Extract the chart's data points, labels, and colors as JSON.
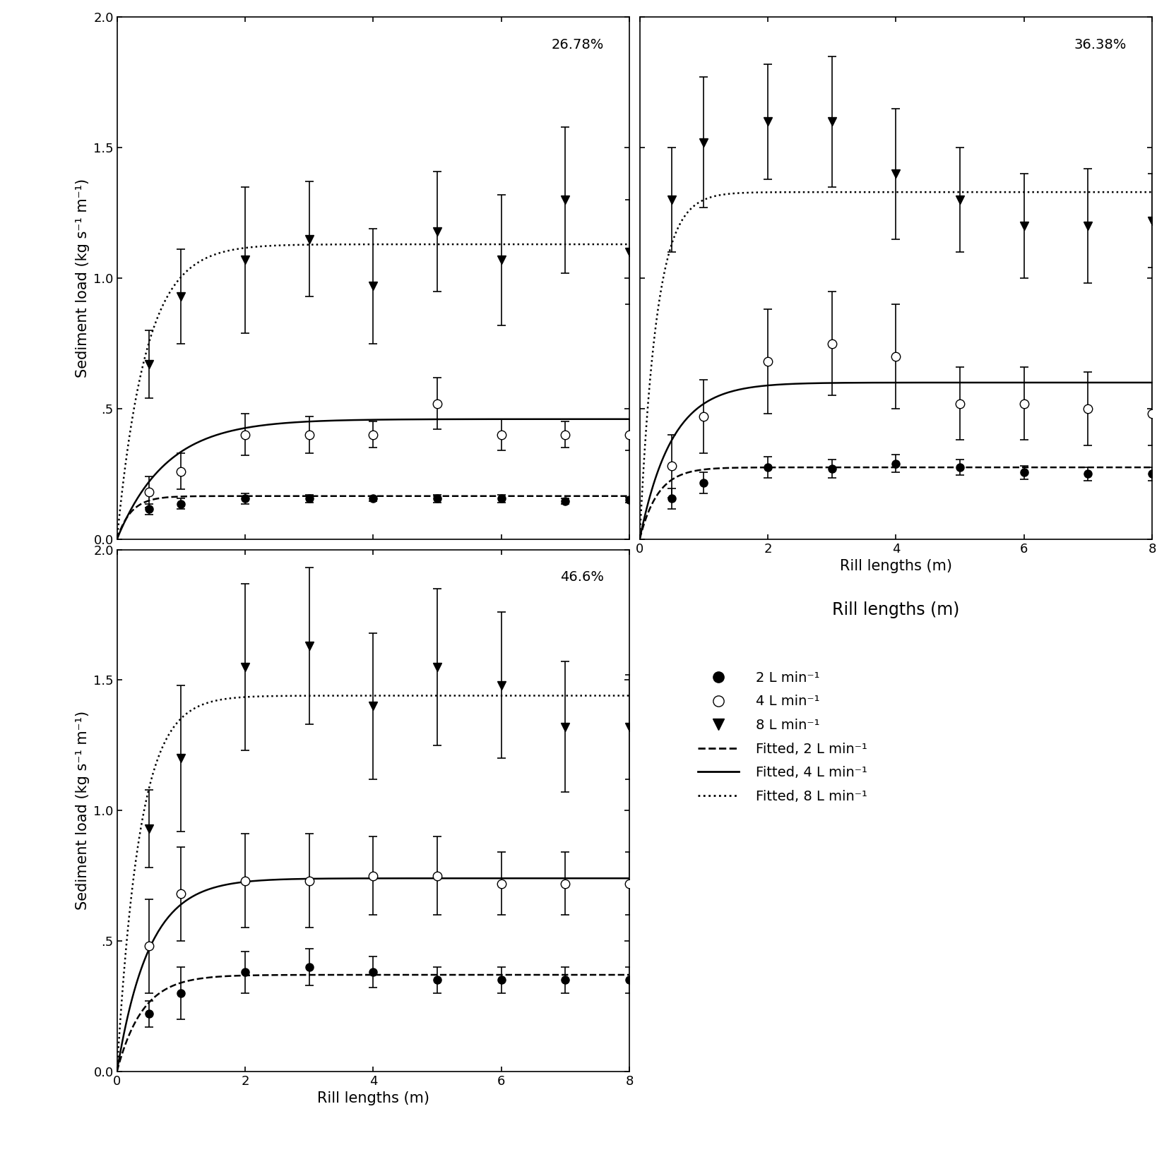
{
  "panels": [
    {
      "label": "26.78%",
      "flow2_data_x": [
        0.5,
        1.0,
        2.0,
        3.0,
        4.0,
        5.0,
        6.0,
        7.0,
        8.0
      ],
      "flow2_data_y": [
        0.115,
        0.135,
        0.155,
        0.155,
        0.155,
        0.155,
        0.155,
        0.145,
        0.15
      ],
      "flow2_yerr": [
        0.02,
        0.02,
        0.02,
        0.015,
        0.01,
        0.015,
        0.015,
        0.01,
        0.01
      ],
      "flow4_data_x": [
        0.5,
        1.0,
        2.0,
        3.0,
        4.0,
        5.0,
        6.0,
        7.0,
        8.0
      ],
      "flow4_data_y": [
        0.18,
        0.26,
        0.4,
        0.4,
        0.4,
        0.52,
        0.4,
        0.4,
        0.4
      ],
      "flow4_yerr": [
        0.06,
        0.07,
        0.08,
        0.07,
        0.05,
        0.1,
        0.06,
        0.05,
        0.06
      ],
      "flow8_data_x": [
        0.5,
        1.0,
        2.0,
        3.0,
        4.0,
        5.0,
        6.0,
        7.0,
        8.0
      ],
      "flow8_data_y": [
        0.67,
        0.93,
        1.07,
        1.15,
        0.97,
        1.18,
        1.07,
        1.3,
        1.1
      ],
      "flow8_yerr": [
        0.13,
        0.18,
        0.28,
        0.22,
        0.22,
        0.23,
        0.25,
        0.28,
        0.2
      ],
      "fit2_params": [
        0.165,
        4.5
      ],
      "fit4_params": [
        0.46,
        1.3
      ],
      "fit8_params": [
        1.13,
        2.2
      ],
      "ylim": [
        0.0,
        2.0
      ],
      "yticks": [
        0.0,
        0.5,
        1.0,
        1.5,
        2.0
      ],
      "show_ylabel": true,
      "show_yticklabels": true,
      "show_xlabel": false,
      "show_xticklabels": false
    },
    {
      "label": "36.38%",
      "flow2_data_x": [
        0.5,
        1.0,
        2.0,
        3.0,
        4.0,
        5.0,
        6.0,
        7.0,
        8.0
      ],
      "flow2_data_y": [
        0.155,
        0.215,
        0.275,
        0.27,
        0.29,
        0.275,
        0.255,
        0.25,
        0.25
      ],
      "flow2_yerr": [
        0.04,
        0.04,
        0.04,
        0.035,
        0.035,
        0.03,
        0.025,
        0.025,
        0.025
      ],
      "flow4_data_x": [
        0.5,
        1.0,
        2.0,
        3.0,
        4.0,
        5.0,
        6.0,
        7.0,
        8.0
      ],
      "flow4_data_y": [
        0.28,
        0.47,
        0.68,
        0.75,
        0.7,
        0.52,
        0.52,
        0.5,
        0.48
      ],
      "flow4_yerr": [
        0.12,
        0.14,
        0.2,
        0.2,
        0.2,
        0.14,
        0.14,
        0.14,
        0.12
      ],
      "flow8_data_x": [
        0.5,
        1.0,
        2.0,
        3.0,
        4.0,
        5.0,
        6.0,
        7.0,
        8.0
      ],
      "flow8_data_y": [
        1.3,
        1.52,
        1.6,
        1.6,
        1.4,
        1.3,
        1.2,
        1.2,
        1.22
      ],
      "flow8_yerr": [
        0.2,
        0.25,
        0.22,
        0.25,
        0.25,
        0.2,
        0.2,
        0.22,
        0.18
      ],
      "fit2_params": [
        0.275,
        3.5
      ],
      "fit4_params": [
        0.6,
        2.0
      ],
      "fit8_params": [
        1.33,
        3.8
      ],
      "ylim": [
        0.0,
        2.0
      ],
      "yticks": [
        0.0,
        0.5,
        1.0,
        1.5,
        2.0
      ],
      "show_ylabel": false,
      "show_yticklabels": false,
      "show_xlabel": true,
      "show_xticklabels": true
    },
    {
      "label": "46.6%",
      "flow2_data_x": [
        0.5,
        1.0,
        2.0,
        3.0,
        4.0,
        5.0,
        6.0,
        7.0,
        8.0
      ],
      "flow2_data_y": [
        0.22,
        0.3,
        0.38,
        0.4,
        0.38,
        0.35,
        0.35,
        0.35,
        0.35
      ],
      "flow2_yerr": [
        0.05,
        0.1,
        0.08,
        0.07,
        0.06,
        0.05,
        0.05,
        0.05,
        0.05
      ],
      "flow4_data_x": [
        0.5,
        1.0,
        2.0,
        3.0,
        4.0,
        5.0,
        6.0,
        7.0,
        8.0
      ],
      "flow4_data_y": [
        0.48,
        0.68,
        0.73,
        0.73,
        0.75,
        0.75,
        0.72,
        0.72,
        0.72
      ],
      "flow4_yerr": [
        0.18,
        0.18,
        0.18,
        0.18,
        0.15,
        0.15,
        0.12,
        0.12,
        0.12
      ],
      "flow8_data_x": [
        0.5,
        1.0,
        2.0,
        3.0,
        4.0,
        5.0,
        6.0,
        7.0,
        8.0
      ],
      "flow8_data_y": [
        0.93,
        1.2,
        1.55,
        1.63,
        1.4,
        1.55,
        1.48,
        1.32,
        1.32
      ],
      "flow8_yerr": [
        0.15,
        0.28,
        0.32,
        0.3,
        0.28,
        0.3,
        0.28,
        0.25,
        0.2
      ],
      "fit2_params": [
        0.37,
        2.5
      ],
      "fit4_params": [
        0.74,
        2.0
      ],
      "fit8_params": [
        1.44,
        2.8
      ],
      "ylim": [
        0.0,
        2.0
      ],
      "yticks": [
        0.0,
        0.5,
        1.0,
        1.5,
        2.0
      ],
      "show_ylabel": true,
      "show_yticklabels": true,
      "show_xlabel": true,
      "show_xticklabels": true
    }
  ],
  "xlabel": "Rill lengths (m)",
  "ylabel": "Sediment load (kg s⁻¹ m⁻¹)",
  "xlim": [
    0,
    8
  ],
  "xticks": [
    0,
    2,
    4,
    6,
    8
  ],
  "legend_marker_labels": [
    "2 L min⁻¹",
    "4 L min⁻¹",
    "8 L min⁻¹"
  ],
  "legend_line_labels": [
    "Fitted, 2 L min⁻¹",
    "Fitted, 4 L min⁻¹",
    "Fitted, 8 L min⁻¹"
  ],
  "background_color": "white",
  "label_fontsize": 15,
  "tick_fontsize": 13,
  "annotation_fontsize": 14,
  "legend_fontsize": 14
}
